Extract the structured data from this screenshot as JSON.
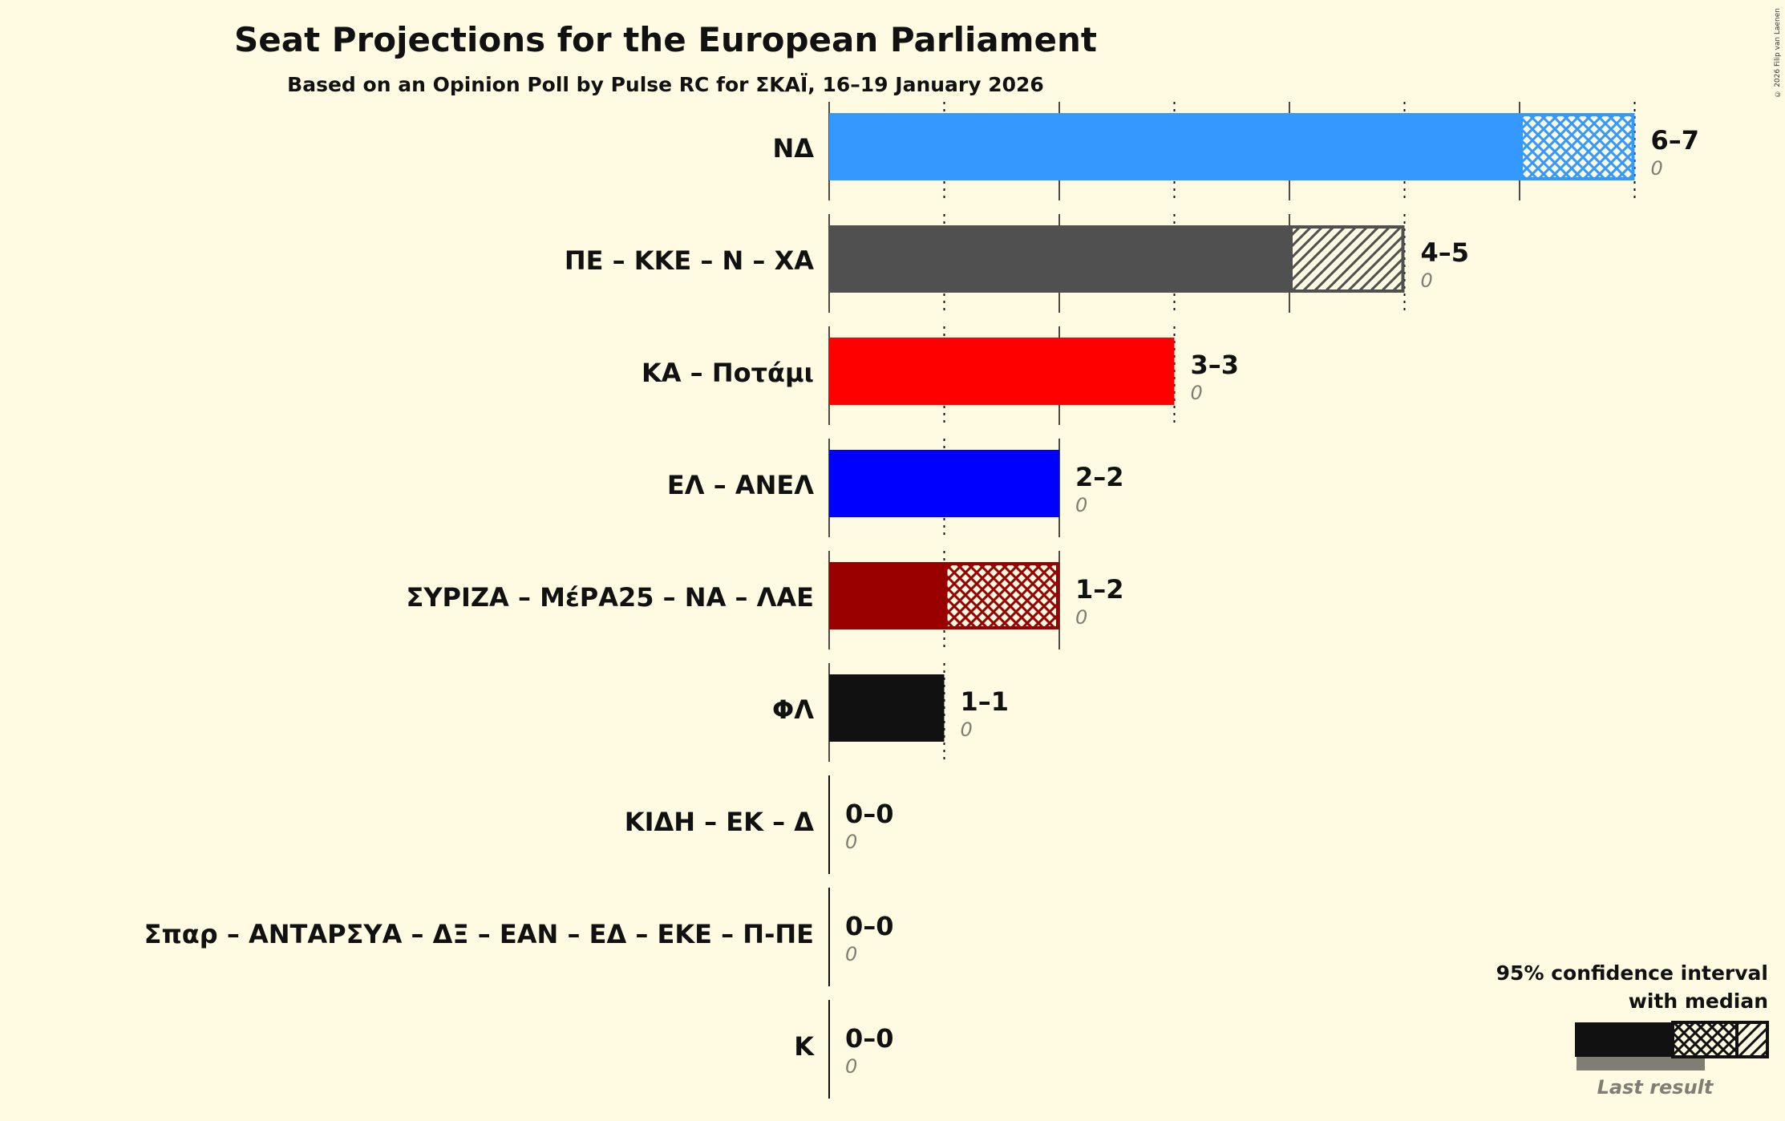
{
  "chart_data": {
    "type": "bar",
    "title": "Seat Projections for the European Parliament",
    "subtitle": "Based on an Opinion Poll by Pulse RC for ΣΚΑΪ, 16–19 January 2026",
    "categories": [
      "ΝΔ",
      "ΠΕ – ΚΚΕ – Ν – ΧΑ",
      "ΚΑ – Ποτάμι",
      "ΕΛ – ΑΝΕΛ",
      "ΣΥΡΙΖΑ – ΜέΡΑ25 – ΝΑ – ΛΑΕ",
      "ΦΛ",
      "ΚΙΔΗ – ΕΚ – Δ",
      "Σπαρ – ΑΝΤΑΡΣΥΑ – ΔΞ – ΕΑΝ – ΕΔ – ΕΚΕ – Π-ΠΕ",
      "Κ"
    ],
    "series": [
      {
        "name": "CI low",
        "values": [
          6,
          4,
          3,
          2,
          1,
          1,
          0,
          0,
          0
        ]
      },
      {
        "name": "CI high",
        "values": [
          7,
          5,
          3,
          2,
          2,
          1,
          0,
          0,
          0
        ]
      },
      {
        "name": "Last result",
        "values": [
          0,
          0,
          0,
          0,
          0,
          0,
          0,
          0,
          0
        ]
      }
    ],
    "range_labels": [
      "6–7",
      "4–5",
      "3–3",
      "2–2",
      "1–2",
      "1–1",
      "0–0",
      "0–0",
      "0–0"
    ],
    "last_labels": [
      "0",
      "0",
      "0",
      "0",
      "0",
      "0",
      "0",
      "0",
      "0"
    ],
    "hatch": [
      "cross",
      "diag",
      "none",
      "none",
      "cross",
      "none",
      "none",
      "none",
      "none"
    ],
    "colors": [
      "#3399ff",
      "#505050",
      "#ff0000",
      "#0000ff",
      "#990000",
      "#111111",
      "#111111",
      "#111111",
      "#111111"
    ],
    "xlim": [
      0,
      7
    ],
    "legend": {
      "title1": "95% confidence interval",
      "title2": "with median",
      "last": "Last result",
      "placement": "bottom-right"
    },
    "copyright": "© 2026 Filip van Laenen"
  }
}
